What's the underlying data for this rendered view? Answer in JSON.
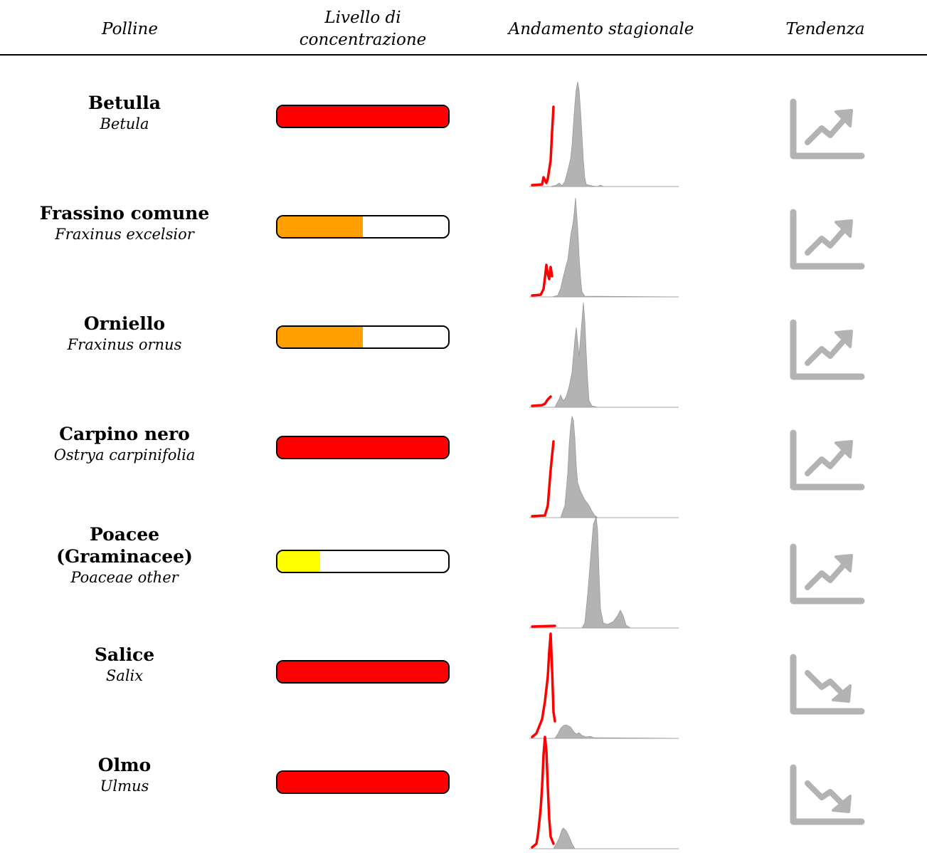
{
  "headers": {
    "pollen": "Polline",
    "level_line1": "Livello di",
    "level_line2": "concentrazione",
    "season": "Andamento stagionale",
    "trend": "Tendenza"
  },
  "colors": {
    "high": "#ff0000",
    "medium": "#ffa000",
    "low": "#ffff00",
    "season_fill": "#b3b3b3",
    "current_line": "#ff0000",
    "trend_icon": "#b3b3b3"
  },
  "rows": [
    {
      "common": "Betulla",
      "latin": "Betula",
      "level": 1.0,
      "level_color": "high",
      "trend": "up-icon"
    },
    {
      "common": "Frassino comune",
      "latin": "Fraxinus excelsior",
      "level": 0.5,
      "level_color": "medium",
      "trend": "up-icon"
    },
    {
      "common": "Orniello",
      "latin": "Fraxinus ornus",
      "level": 0.5,
      "level_color": "medium",
      "trend": "up-icon"
    },
    {
      "common": "Carpino nero",
      "latin": "Ostrya carpinifolia",
      "level": 1.0,
      "level_color": "high",
      "trend": "up-icon"
    },
    {
      "common": "Poacee",
      "common_line2": "(Graminacee)",
      "latin": "Poaceae other",
      "level": 0.25,
      "level_color": "low",
      "trend": "up-icon"
    },
    {
      "common": "Salice",
      "latin": "Salix",
      "level": 1.0,
      "level_color": "high",
      "trend": "down-icon"
    },
    {
      "common": "Olmo",
      "latin": "Ulmus",
      "level": 1.0,
      "level_color": "high",
      "trend": "down-icon"
    }
  ]
}
